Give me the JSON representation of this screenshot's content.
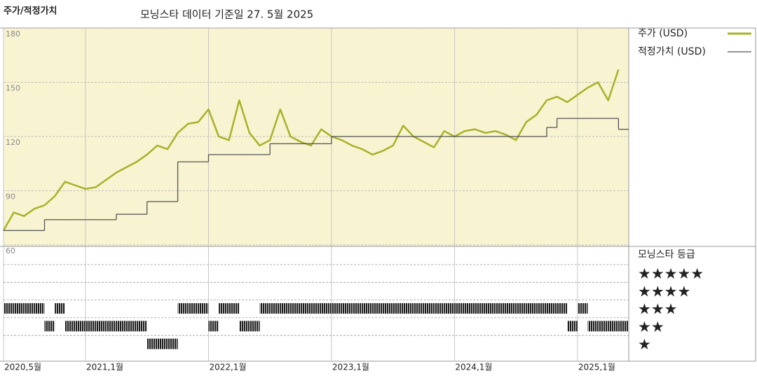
{
  "header": {
    "title": "주가/적정가치",
    "subtitle": "모닝스타 데이터 기준일 27. 5월 2025"
  },
  "chart_data": {
    "type": "line",
    "x": [
      "2020-05",
      "2020-06",
      "2020-07",
      "2020-08",
      "2020-09",
      "2020-10",
      "2020-11",
      "2020-12",
      "2021-01",
      "2021-02",
      "2021-03",
      "2021-04",
      "2021-05",
      "2021-06",
      "2021-07",
      "2021-08",
      "2021-09",
      "2021-10",
      "2021-11",
      "2021-12",
      "2022-01",
      "2022-02",
      "2022-03",
      "2022-04",
      "2022-05",
      "2022-06",
      "2022-07",
      "2022-08",
      "2022-09",
      "2022-10",
      "2022-11",
      "2022-12",
      "2023-01",
      "2023-02",
      "2023-03",
      "2023-04",
      "2023-05",
      "2023-06",
      "2023-07",
      "2023-08",
      "2023-09",
      "2023-10",
      "2023-11",
      "2023-12",
      "2024-01",
      "2024-02",
      "2024-03",
      "2024-04",
      "2024-05",
      "2024-06",
      "2024-07",
      "2024-08",
      "2024-09",
      "2024-10",
      "2024-11",
      "2024-12",
      "2025-01",
      "2025-02",
      "2025-03",
      "2025-04",
      "2025-05"
    ],
    "series": [
      {
        "name": "주가 (USD)",
        "color": "#a9b12a",
        "values": [
          68,
          78,
          76,
          80,
          82,
          87,
          95,
          93,
          91,
          92,
          96,
          100,
          103,
          106,
          110,
          115,
          113,
          122,
          127,
          128,
          135,
          120,
          118,
          140,
          122,
          115,
          118,
          135,
          120,
          117,
          115,
          124,
          120,
          118,
          115,
          113,
          110,
          112,
          115,
          126,
          120,
          117,
          114,
          123,
          120,
          123,
          124,
          122,
          123,
          121,
          118,
          128,
          132,
          140,
          142,
          139,
          143,
          147,
          150,
          140,
          157
        ]
      },
      {
        "name": "적정가치 (USD)",
        "color": "#555555",
        "step": true,
        "values": [
          68,
          68,
          68,
          68,
          74,
          74,
          74,
          74,
          74,
          74,
          74,
          77,
          77,
          77,
          84,
          84,
          84,
          106,
          106,
          106,
          110,
          110,
          110,
          110,
          110,
          110,
          116,
          116,
          116,
          116,
          116,
          116,
          120,
          120,
          120,
          120,
          120,
          120,
          120,
          120,
          120,
          120,
          120,
          120,
          120,
          120,
          120,
          120,
          120,
          120,
          120,
          120,
          120,
          125,
          130,
          130,
          130,
          130,
          130,
          130,
          124
        ]
      }
    ],
    "xlim": [
      "2020-05",
      "2025-06"
    ],
    "xticks": [
      {
        "value": "2020-05",
        "label": "2020,5월"
      },
      {
        "value": "2021-01",
        "label": "2021,1월"
      },
      {
        "value": "2022-01",
        "label": "2022,1월"
      },
      {
        "value": "2023-01",
        "label": "2023,1월"
      },
      {
        "value": "2024-01",
        "label": "2024,1월"
      },
      {
        "value": "2025-01",
        "label": "2025,1월"
      }
    ],
    "ylim": [
      60,
      180
    ],
    "yticks": [
      60,
      90,
      120,
      150,
      180
    ],
    "background": "#f8f4d2",
    "ratings": {
      "title": "모닝스타 등급",
      "levels": [
        {
          "value": 5,
          "label": "★★★★★"
        },
        {
          "value": 4,
          "label": "★★★★"
        },
        {
          "value": 3,
          "label": "★★★"
        },
        {
          "value": 2,
          "label": "★★"
        },
        {
          "value": 1,
          "label": "★"
        }
      ],
      "values": [
        3,
        3,
        3,
        3,
        2,
        3,
        2,
        2,
        2,
        2,
        2,
        2,
        2,
        2,
        1,
        1,
        1,
        3,
        3,
        3,
        2,
        3,
        3,
        2,
        2,
        3,
        3,
        3,
        3,
        3,
        3,
        3,
        3,
        3,
        3,
        3,
        3,
        3,
        3,
        3,
        3,
        3,
        3,
        3,
        3,
        3,
        3,
        3,
        3,
        3,
        3,
        3,
        3,
        3,
        3,
        2,
        3,
        2,
        2,
        2,
        2
      ]
    }
  }
}
